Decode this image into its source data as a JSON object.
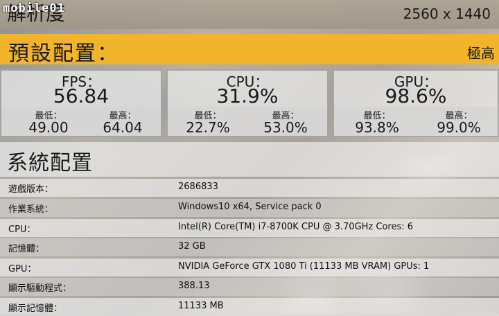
{
  "watermark": "mobile01",
  "resolution": {
    "label": "解析度",
    "value": "2560 x 1440"
  },
  "preset": {
    "label": "預設配置：",
    "value": "極高"
  },
  "stats": [
    {
      "title": "FPS：",
      "value": "56.84",
      "min_label": "最低：",
      "min": "49.00",
      "max_label": "最高：",
      "max": "64.04"
    },
    {
      "title": "CPU：",
      "value": "31.9%",
      "min_label": "最低：",
      "min": "22.7%",
      "max_label": "最高：",
      "max": "53.0%"
    },
    {
      "title": "GPU：",
      "value": "98.6%",
      "min_label": "最低：",
      "min": "93.8%",
      "max_label": "最高：",
      "max": "99.0%"
    }
  ],
  "system": {
    "title": "系統配置",
    "rows": [
      {
        "key": "遊戲版本：",
        "value": "2686833"
      },
      {
        "key": "作業系統：",
        "value": "Windows10 x64, Service pack 0"
      },
      {
        "key": "CPU：",
        "value": "Intel(R) Core(TM) i7-8700K CPU @ 3.70GHz Cores: 6"
      },
      {
        "key": "記憶體：",
        "value": "32 GB"
      },
      {
        "key": "GPU：",
        "value": "NVIDIA GeForce GTX 1080 Ti (11133 MB VRAM) GPUs: 1"
      },
      {
        "key": "顯示驅動程式：",
        "value": "388.13"
      },
      {
        "key": "顯示記憶體：",
        "value": "11133 MB"
      }
    ]
  }
}
